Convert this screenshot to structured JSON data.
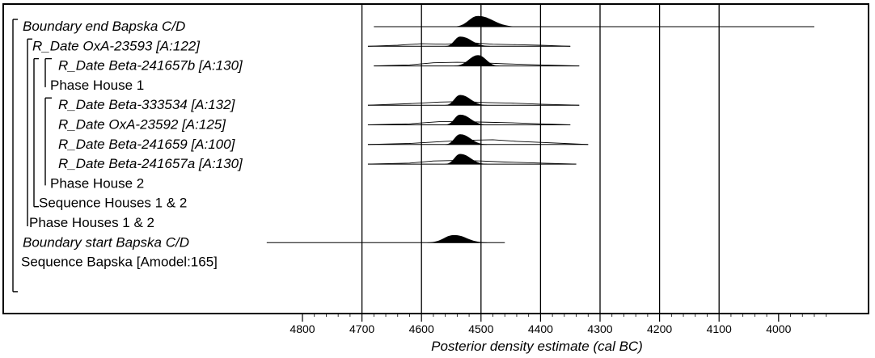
{
  "chart_data": {
    "type": "density",
    "xlabel": "Posterior density estimate (cal BC)",
    "x_reversed": true,
    "xlim": [
      4900,
      3880
    ],
    "xticks": [
      "4800",
      "4700",
      "4600",
      "4500",
      "4400",
      "4300",
      "4200",
      "4100",
      "4000"
    ],
    "vlines": [
      4700,
      4600,
      4500,
      4400,
      4300,
      4200,
      4100
    ],
    "rows": [
      {
        "label": "Boundary end Bapska C/D",
        "italic": true,
        "indent": 0,
        "line": [
          4680,
          3940
        ],
        "posterior": {
          "peak": 4505,
          "left": 4545,
          "right": 4440,
          "height": 1.0
        }
      },
      {
        "label": "R_Date OxA-23593 [A:122]",
        "italic": true,
        "indent": 1,
        "line": [
          4690,
          4350
        ],
        "prior": [
          [
            4690,
            0
          ],
          [
            4640,
            0.1
          ],
          [
            4600,
            0.25
          ],
          [
            4560,
            0.2
          ],
          [
            4520,
            0.35
          ],
          [
            4480,
            0.2
          ],
          [
            4440,
            0.15
          ],
          [
            4400,
            0.1
          ],
          [
            4350,
            0
          ]
        ],
        "posterior": {
          "peak": 4535,
          "left": 4560,
          "right": 4485,
          "height": 0.9
        }
      },
      {
        "label": "R_Date Beta-241657b [A:130]",
        "italic": true,
        "indent": 2,
        "line": [
          4680,
          4335
        ],
        "prior": [
          [
            4680,
            0
          ],
          [
            4620,
            0.1
          ],
          [
            4580,
            0.3
          ],
          [
            4540,
            0.35
          ],
          [
            4500,
            0.3
          ],
          [
            4460,
            0.2
          ],
          [
            4400,
            0.1
          ],
          [
            4335,
            0
          ]
        ],
        "posterior": {
          "peak": 4505,
          "left": 4545,
          "right": 4470,
          "height": 1.0
        }
      },
      {
        "label": "Phase House 1",
        "italic": false,
        "indent": 2
      },
      {
        "label": "R_Date Beta-333534 [A:132]",
        "italic": true,
        "indent": 2,
        "line": [
          4690,
          4335
        ],
        "prior": [
          [
            4690,
            0
          ],
          [
            4620,
            0.15
          ],
          [
            4570,
            0.3
          ],
          [
            4530,
            0.35
          ],
          [
            4490,
            0.25
          ],
          [
            4450,
            0.2
          ],
          [
            4400,
            0.1
          ],
          [
            4335,
            0
          ]
        ],
        "posterior": {
          "peak": 4535,
          "left": 4560,
          "right": 4490,
          "height": 0.95
        }
      },
      {
        "label": "R_Date OxA-23592 [A:125]",
        "italic": true,
        "indent": 2,
        "line": [
          4690,
          4350
        ],
        "prior": [
          [
            4690,
            0
          ],
          [
            4620,
            0.1
          ],
          [
            4570,
            0.3
          ],
          [
            4530,
            0.3
          ],
          [
            4490,
            0.25
          ],
          [
            4450,
            0.2
          ],
          [
            4400,
            0.1
          ],
          [
            4350,
            0
          ]
        ],
        "posterior": {
          "peak": 4535,
          "left": 4560,
          "right": 4490,
          "height": 0.95
        }
      },
      {
        "label": "R_Date Beta-241659 [A:100]",
        "italic": true,
        "indent": 2,
        "line": [
          4690,
          4320
        ],
        "prior": [
          [
            4690,
            0
          ],
          [
            4620,
            0.1
          ],
          [
            4560,
            0.3
          ],
          [
            4520,
            0.4
          ],
          [
            4480,
            0.45
          ],
          [
            4440,
            0.3
          ],
          [
            4400,
            0.2
          ],
          [
            4360,
            0.1
          ],
          [
            4320,
            0
          ]
        ],
        "posterior": {
          "peak": 4535,
          "left": 4560,
          "right": 4490,
          "height": 0.95
        }
      },
      {
        "label": "R_Date Beta-241657a [A:130]",
        "italic": true,
        "indent": 2,
        "line": [
          4690,
          4340
        ],
        "prior": [
          [
            4690,
            0
          ],
          [
            4620,
            0.1
          ],
          [
            4580,
            0.3
          ],
          [
            4540,
            0.35
          ],
          [
            4500,
            0.3
          ],
          [
            4460,
            0.2
          ],
          [
            4400,
            0.1
          ],
          [
            4340,
            0
          ]
        ],
        "posterior": {
          "peak": 4535,
          "left": 4560,
          "right": 4490,
          "height": 0.95
        }
      },
      {
        "label": "Phase House 2",
        "italic": false,
        "indent": 2
      },
      {
        "label": "Sequence Houses 1 & 2",
        "italic": false,
        "indent": 1.5
      },
      {
        "label": "Phase Houses 1 & 2",
        "italic": false,
        "indent": 1
      },
      {
        "label": "Boundary start Bapska C/D",
        "italic": true,
        "indent": 0.5,
        "line": [
          4860,
          4460
        ],
        "posterior": {
          "peak": 4545,
          "left": 4590,
          "right": 4490,
          "height": 0.7
        }
      },
      {
        "label": "Sequence Bapska [Amodel:165]",
        "italic": false,
        "indent": 0.5
      }
    ]
  }
}
